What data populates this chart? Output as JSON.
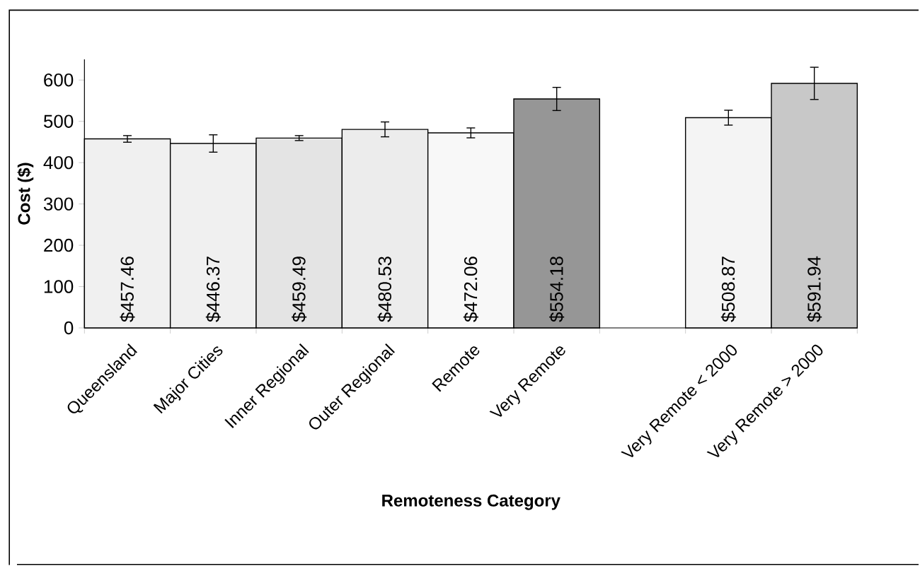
{
  "chart_data": {
    "type": "bar",
    "xlabel": "Remoteness Category",
    "ylabel": "Cost ($)",
    "categories": [
      "Queensland",
      "Major Cities",
      "Inner Regional",
      "Outer Regional",
      "Remote",
      "Very Remote",
      null,
      "Very Remote < 2000",
      "Very Remote > 2000"
    ],
    "values": [
      457.46,
      446.37,
      459.49,
      480.53,
      472.06,
      554.18,
      null,
      508.87,
      591.94
    ],
    "errors": [
      8,
      21,
      6,
      18,
      12,
      28,
      null,
      18,
      39
    ],
    "value_labels": [
      "$457.46",
      "$446.37",
      "$459.49",
      "$480.53",
      "$472.06",
      "$554.18",
      null,
      "$508.87",
      "$591.94"
    ],
    "colors": [
      "#f0f0f0",
      "#f0f0f0",
      "#e4e4e4",
      "#ececec",
      "#f8f8f8",
      "#969696",
      "#ffffff",
      "#f4f4f4",
      "#c8c8c8"
    ],
    "ylim": [
      0,
      650
    ],
    "yticks": [
      0,
      100,
      200,
      300,
      400,
      500,
      600
    ]
  }
}
